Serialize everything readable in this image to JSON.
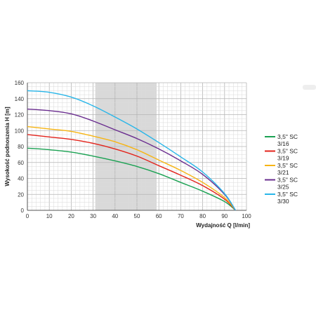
{
  "chart_data": {
    "type": "line",
    "xlabel": "Wydajność Q [l/min]",
    "ylabel": "Wysokość podnoszenia H [m]",
    "xlim": [
      0,
      100
    ],
    "ylim": [
      0,
      160
    ],
    "x_ticks": [
      0,
      10,
      20,
      30,
      40,
      50,
      60,
      70,
      80,
      90,
      100
    ],
    "y_ticks": [
      0,
      20,
      40,
      60,
      80,
      100,
      120,
      140,
      160
    ],
    "grid": true,
    "legend_position": "right",
    "shaded_region": [
      31,
      59
    ],
    "shaded_color": "#d9d9d9",
    "series": [
      {
        "name": "3,5\" SC 3/16",
        "legend_lines": [
          "3,5\" SC",
          "3/16"
        ],
        "color": "#1aa152",
        "x": [
          0,
          10,
          20,
          30,
          40,
          50,
          60,
          70,
          80,
          90,
          95
        ],
        "y": [
          78,
          76,
          73,
          68,
          62,
          55,
          46,
          35,
          24,
          11,
          0
        ]
      },
      {
        "name": "3,5\" SC 3/19",
        "legend_lines": [
          "3,5\" SC",
          "3/19"
        ],
        "color": "#e3231b",
        "x": [
          0,
          10,
          20,
          30,
          40,
          50,
          60,
          70,
          80,
          90,
          95
        ],
        "y": [
          95,
          92,
          89,
          84,
          77,
          68,
          56,
          44,
          31,
          14,
          0
        ]
      },
      {
        "name": "3,5\" SC 3/21",
        "legend_lines": [
          "3,5\" SC",
          "3/21"
        ],
        "color": "#f7b514",
        "x": [
          0,
          10,
          20,
          30,
          40,
          50,
          60,
          70,
          80,
          90,
          95
        ],
        "y": [
          105,
          102,
          99,
          93,
          86,
          76,
          63,
          50,
          35,
          16,
          0
        ]
      },
      {
        "name": "3,5\" SC 3/25",
        "legend_lines": [
          "3,5\" SC",
          "3/25"
        ],
        "color": "#6a2d8f",
        "x": [
          0,
          10,
          20,
          30,
          40,
          50,
          60,
          70,
          80,
          90,
          95
        ],
        "y": [
          127,
          125,
          121,
          112,
          101,
          90,
          77,
          62,
          45,
          20,
          0
        ]
      },
      {
        "name": "3,5\" SC 3/30",
        "legend_lines": [
          "3,5\" SC",
          "3/30"
        ],
        "color": "#29b6e9",
        "x": [
          0,
          10,
          20,
          30,
          40,
          50,
          60,
          70,
          80,
          90,
          95
        ],
        "y": [
          150,
          148,
          142,
          131,
          117,
          102,
          85,
          67,
          48,
          21,
          0
        ]
      }
    ]
  }
}
